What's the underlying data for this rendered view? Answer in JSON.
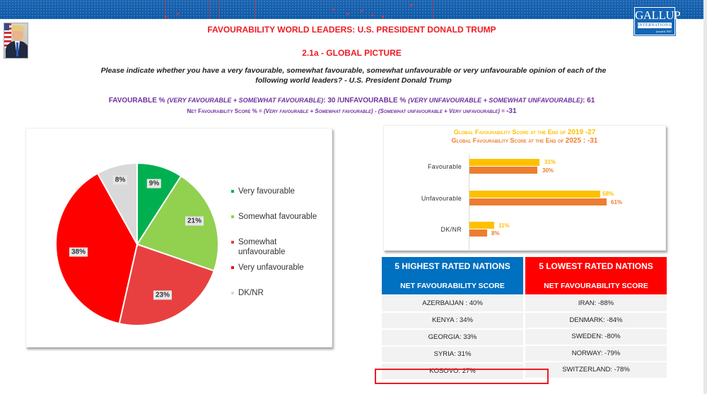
{
  "header": {
    "title": "FAVOURABILITY WORLD LEADERS: U.S. PRESIDENT DONALD TRUMP",
    "subtitle": "2.1a - GLOBAL PICTURE",
    "logo": {
      "name": "GALLUP",
      "sub": "INTERNATIONAL",
      "est": "founded 1947"
    },
    "question": "Please indicate whether you have a very favourable, somewhat favourable, somewhat unfavourable or very unfavourable opinion of each of the following world leaders? - U.S. President Donald Trump"
  },
  "summary": {
    "fav_label": "FAVOURABLE %",
    "fav_def": "(VERY FAVOURABLE + SOMEWHAT FAVOURABLE)",
    "fav_value": ": 30 /",
    "unfav_label": "UNFAVOURABLE %",
    "unfav_def": "(VERY UNFAVOURABLE + SOMEWHAT UNFAVOURABLE)",
    "unfav_value": ": 61",
    "net_label": "Net Favourability Score % = ",
    "net_def": " (Very favourable + Somewhat favourable) - (Somewhat unfavourable + Very unfavourable) = ",
    "net_value": "-31"
  },
  "colors": {
    "title_red": "#ee1c25",
    "purple": "#7030a0",
    "very_fav": "#00b050",
    "somewhat_fav": "#92d050",
    "somewhat_unfav": "#e84040",
    "very_unfav": "#ff0000",
    "dknr": "#d9d9d9",
    "y2019": "#ffc000",
    "y2025": "#ed7d31",
    "high_blue": "#0070c0",
    "low_red": "#ff0000"
  },
  "chart_data": [
    {
      "type": "pie",
      "title": "",
      "categories": [
        "Very favourable",
        "Somewhat favourable",
        "Somewhat unfavourable",
        "Very unfavourable",
        "DK/NR"
      ],
      "values": [
        9,
        21,
        23,
        38,
        8
      ],
      "labels": [
        "9%",
        "21%",
        "23%",
        "38%",
        "8%"
      ],
      "colors": [
        "#00b050",
        "#92d050",
        "#e84040",
        "#ff0000",
        "#d9d9d9"
      ],
      "legend_position": "right"
    },
    {
      "type": "bar",
      "orientation": "horizontal",
      "title": [
        "Global Favourability Score  at the End of 2019 -27",
        "Global Favourability Score  at the End of 2025 : -31"
      ],
      "categories": [
        "Favourable",
        "Unfavourable",
        "DK/NR"
      ],
      "series": [
        {
          "name": "2019",
          "values": [
            31,
            58,
            11
          ],
          "labels": [
            "31%",
            "58%",
            "11%"
          ],
          "color": "#ffc000"
        },
        {
          "name": "2025",
          "values": [
            30,
            61,
            8
          ],
          "labels": [
            "30%",
            "61%",
            "8%"
          ],
          "color": "#ed7d31"
        }
      ],
      "xlabel": "",
      "ylabel": "",
      "grid": false
    }
  ],
  "pie": {
    "labels": [
      "9%",
      "21%",
      "23%",
      "38%",
      "8%"
    ],
    "legend": [
      "Very favourable",
      "Somewhat favourable",
      "Somewhat",
      "unfavourable",
      "Very unfavourable",
      "DK/NR"
    ]
  },
  "bars": {
    "title1_text": "Global Favourability Score  at the End of ",
    "title1_num": "2019 -27",
    "title2_text": "Global Favourability Score  at the End of ",
    "title2_num": "2025 : -31",
    "categories": [
      "Favourable",
      "Unfavourable",
      "DK/NR"
    ],
    "v2019": [
      "31%",
      "58%",
      "11%"
    ],
    "v2025": [
      "30%",
      "61%",
      "8%"
    ]
  },
  "tables": {
    "highest": {
      "title": "5 HIGHEST RATED NATIONS",
      "subtitle": "NET FAVOURABILITY SCORE",
      "rows": [
        "AZERBAIJAN : 40%",
        "KENYA : 34%",
        "GEORGIA: 33%",
        "SYRIA: 31%",
        "KOSOVO: 27%"
      ]
    },
    "lowest": {
      "title": "5 LOWEST RATED NATIONS",
      "subtitle": "NET FAVOURABILITY SCORE",
      "rows": [
        "IRAN: -88%",
        "DENMARK: -84%",
        "SWEDEN: -80%",
        "NORWAY: -79%",
        "SWITZERLAND: -78%"
      ]
    }
  }
}
